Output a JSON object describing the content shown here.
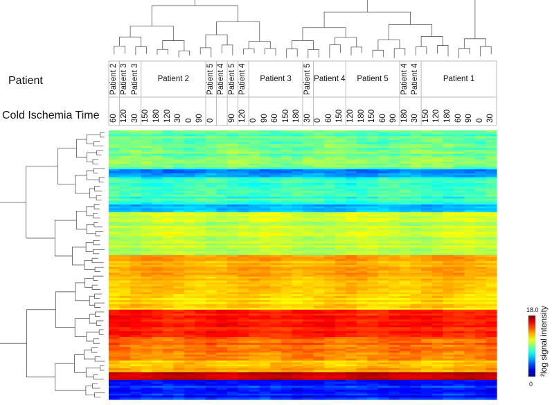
{
  "labels": {
    "patient_row": "Patient",
    "cit_row": "Cold Ischemia Time",
    "colorbar_title": "²log signal intensity"
  },
  "chart_data": {
    "type": "heatmap",
    "title": "",
    "columns": [
      {
        "patient": "Patient 2",
        "cit": "60"
      },
      {
        "patient": "Patient 3",
        "cit": "120"
      },
      {
        "patient": "Patient 3",
        "cit": "30"
      },
      {
        "patient": "Patient 2",
        "cit": "150"
      },
      {
        "patient": "Patient 2",
        "cit": "180"
      },
      {
        "patient": "Patient 2",
        "cit": "120"
      },
      {
        "patient": "Patient 2",
        "cit": "30"
      },
      {
        "patient": "Patient 2",
        "cit": "0"
      },
      {
        "patient": "Patient 2",
        "cit": "90"
      },
      {
        "patient": "Patient 5",
        "cit": "0"
      },
      {
        "patient": "Patient 4",
        "cit": ""
      },
      {
        "patient": "Patient 5",
        "cit": "90"
      },
      {
        "patient": "Patient 4",
        "cit": "120"
      },
      {
        "patient": "Patient 3",
        "cit": "0"
      },
      {
        "patient": "Patient 3",
        "cit": "90"
      },
      {
        "patient": "Patient 3",
        "cit": "60"
      },
      {
        "patient": "Patient 3",
        "cit": "150"
      },
      {
        "patient": "Patient 3",
        "cit": "180"
      },
      {
        "patient": "Patient 5",
        "cit": "30"
      },
      {
        "patient": "Patient 4",
        "cit": "0"
      },
      {
        "patient": "Patient 4",
        "cit": "60"
      },
      {
        "patient": "Patient 4",
        "cit": "150"
      },
      {
        "patient": "Patient 5",
        "cit": "120"
      },
      {
        "patient": "Patient 5",
        "cit": "180"
      },
      {
        "patient": "Patient 5",
        "cit": "150"
      },
      {
        "patient": "Patient 5",
        "cit": "60"
      },
      {
        "patient": "Patient 5",
        "cit": "90"
      },
      {
        "patient": "Patient 4",
        "cit": "180"
      },
      {
        "patient": "Patient 4",
        "cit": "30"
      },
      {
        "patient": "Patient 1",
        "cit": "150"
      },
      {
        "patient": "Patient 1",
        "cit": "120"
      },
      {
        "patient": "Patient 1",
        "cit": "180"
      },
      {
        "patient": "Patient 1",
        "cit": "60"
      },
      {
        "patient": "Patient 1",
        "cit": "90"
      },
      {
        "patient": "Patient 1",
        "cit": "0"
      },
      {
        "patient": "Patient 1",
        "cit": "30"
      }
    ],
    "patient_groups": [
      {
        "label": "Patient 2",
        "start": 0,
        "end": 0
      },
      {
        "label": "Patient 3",
        "start": 1,
        "end": 2
      },
      {
        "label": "Patient 2",
        "start": 3,
        "end": 8
      },
      {
        "label": "Patient 5",
        "start": 9,
        "end": 9
      },
      {
        "label": "Patient 4",
        "start": 10,
        "end": 10
      },
      {
        "label": "Patient 5",
        "start": 11,
        "end": 11
      },
      {
        "label": "Patient 4",
        "start": 12,
        "end": 12
      },
      {
        "label": "Patient 3",
        "start": 13,
        "end": 17
      },
      {
        "label": "Patient 5",
        "start": 18,
        "end": 18
      },
      {
        "label": "Patient 4",
        "start": 19,
        "end": 21
      },
      {
        "label": "Patient 5",
        "start": 22,
        "end": 26
      },
      {
        "label": "Patient 4",
        "start": 27,
        "end": 28
      },
      {
        "label": "Patient 1",
        "start": 29,
        "end": 35
      }
    ],
    "row_blocks": [
      {
        "rows": 20,
        "mean": 8.5,
        "spread": 1.3
      },
      {
        "rows": 4,
        "mean": 5.0,
        "spread": 1.0
      },
      {
        "rows": 14,
        "mean": 7.8,
        "spread": 1.2
      },
      {
        "rows": 4,
        "mean": 5.5,
        "spread": 0.9
      },
      {
        "rows": 22,
        "mean": 10.2,
        "spread": 0.9
      },
      {
        "rows": 20,
        "mean": 12.6,
        "spread": 0.7
      },
      {
        "rows": 8,
        "mean": 11.8,
        "spread": 0.7
      },
      {
        "rows": 14,
        "mean": 15.2,
        "spread": 0.8
      },
      {
        "rows": 12,
        "mean": 13.8,
        "spread": 1.0
      },
      {
        "rows": 6,
        "mean": 12.4,
        "spread": 0.9
      },
      {
        "rows": 4,
        "mean": 16.8,
        "spread": 0.5
      },
      {
        "rows": 10,
        "mean": 2.8,
        "spread": 1.2
      }
    ],
    "value_min": 0,
    "value_max": 18.0,
    "colorbar": {
      "min_label": "0",
      "max_label": "18.0",
      "colormap": "jet"
    },
    "row_dendrogram": true,
    "column_dendrogram": true
  }
}
